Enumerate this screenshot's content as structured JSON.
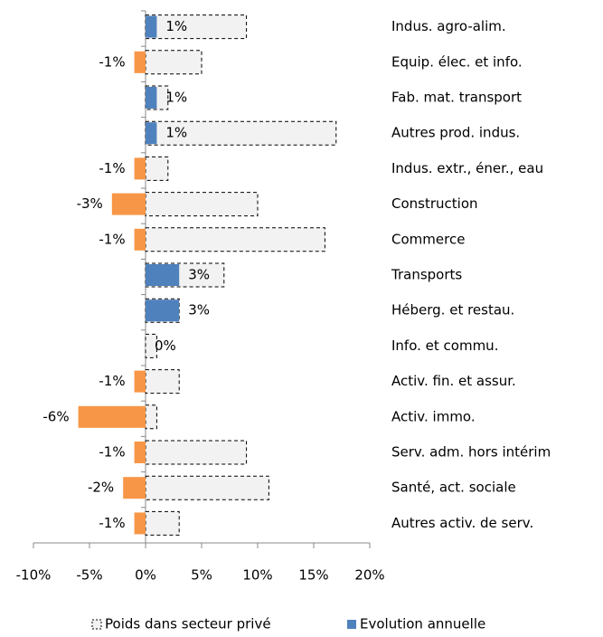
{
  "chart_data": {
    "type": "bar",
    "orientation": "horizontal",
    "categories": [
      "Indus. agro-alim.",
      "Equip. élec. et info.",
      "Fab. mat. transport",
      "Autres prod. indus.",
      "Indus. extr., éner., eau",
      "Construction",
      "Commerce",
      "Transports",
      "Héberg. et restau.",
      "Info. et commu.",
      "Activ. fin. et assur.",
      "Activ. immo.",
      "Serv. adm. hors intérim",
      "Santé, act. sociale",
      "Autres activ. de serv."
    ],
    "series": [
      {
        "name": "Poids dans secteur privé",
        "color": "#f2f2f2",
        "values": [
          9,
          5,
          2,
          17,
          2,
          10,
          16,
          7,
          3,
          1,
          3,
          1,
          9,
          11,
          3
        ]
      },
      {
        "name": "Evolution annuelle",
        "color": "#4f81bd",
        "negative_color": "#f79646",
        "values": [
          1,
          -1,
          1,
          1,
          -1,
          -3,
          -1,
          3,
          3,
          0,
          -1,
          -6,
          -1,
          -2,
          -1
        ],
        "value_labels": [
          "1%",
          "-1%",
          "1%",
          "1%",
          "-1%",
          "-3%",
          "-1%",
          "3%",
          "3%",
          "0%",
          "-1%",
          "-6%",
          "-1%",
          "-2%",
          "-1%"
        ]
      }
    ],
    "xlim": [
      -10,
      20
    ],
    "xticks": [
      {
        "value": -10,
        "label": "-10%"
      },
      {
        "value": -5,
        "label": "-5%"
      },
      {
        "value": 0,
        "label": "0%"
      },
      {
        "value": 5,
        "label": "5%"
      },
      {
        "value": 10,
        "label": "10%"
      },
      {
        "value": 15,
        "label": "15%"
      },
      {
        "value": 20,
        "label": "20%"
      }
    ],
    "legend": "bottom"
  }
}
